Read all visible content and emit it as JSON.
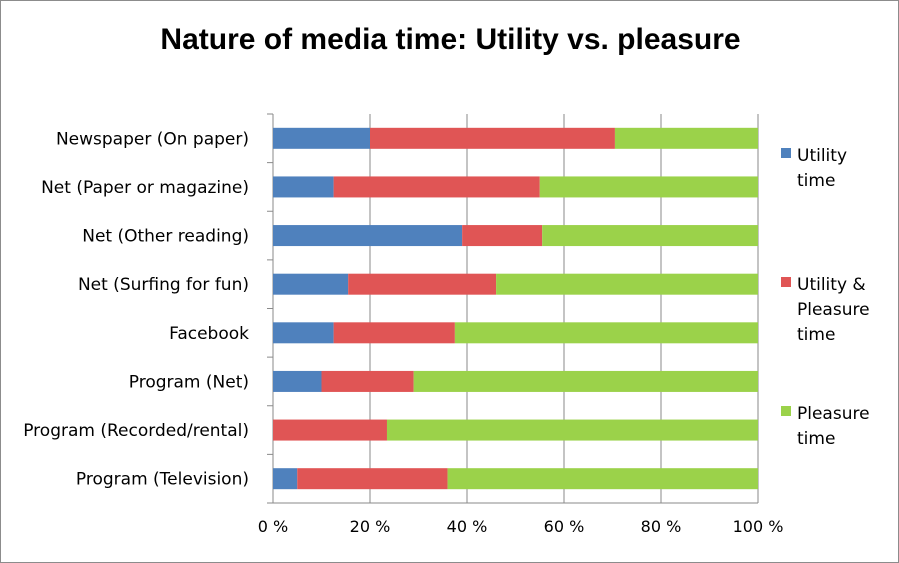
{
  "chart_data": {
    "type": "bar",
    "orientation": "horizontal",
    "stacked": true,
    "percent": true,
    "title": "Nature of media time: Utility vs. pleasure",
    "xlabel": "",
    "ylabel": "",
    "xlim": [
      0,
      100
    ],
    "x_ticks": [
      "0 %",
      "20 %",
      "40 %",
      "60 %",
      "80 %",
      "100 %"
    ],
    "grid": true,
    "legend_position": "right",
    "categories": [
      "Newspaper (On paper)",
      "Net (Paper or magazine)",
      "Net (Other reading)",
      "Net (Surfing for fun)",
      "Facebook",
      "Program (Net)",
      "Program (Recorded/rental)",
      "Program (Television)"
    ],
    "series": [
      {
        "name": "Utility time",
        "legend_lines": [
          "Utility",
          "time"
        ],
        "color": "#4f81bd",
        "values": [
          20,
          12.5,
          39,
          15.5,
          12.5,
          10,
          0,
          5
        ]
      },
      {
        "name": "Utility & Pleasure time",
        "legend_lines": [
          "Utility &",
          "Pleasure",
          "time"
        ],
        "color": "#e05555",
        "values": [
          50.5,
          42.5,
          16.5,
          30.5,
          25,
          19,
          23.5,
          31
        ]
      },
      {
        "name": "Pleasure time",
        "legend_lines": [
          "Pleasure",
          "time"
        ],
        "color": "#9bd24a",
        "values": [
          29.5,
          45,
          44.5,
          54,
          62.5,
          71,
          76.5,
          64
        ]
      }
    ]
  }
}
